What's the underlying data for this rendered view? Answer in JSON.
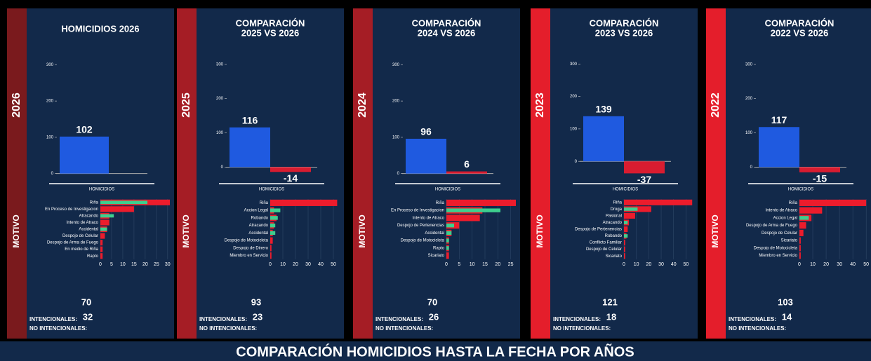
{
  "panels": [
    {
      "side_label": "2026",
      "side_color": "#7a1a1d",
      "title_lines": [
        "HOMICIDIOS 2026"
      ],
      "summary_chart": {
        "type": "bar",
        "categories": [
          "HOMICIDIOS"
        ],
        "series": [
          {
            "color": "#1f5ae0",
            "values": [
              102
            ]
          }
        ],
        "ylim": [
          -20,
          320
        ],
        "yticks": [
          0,
          100,
          200,
          300
        ]
      },
      "motivo_label": "MOTIVO",
      "motivo_chart": {
        "type": "bar",
        "orientation": "horizontal",
        "categories": [
          "Riña",
          "En Proceso de Investigacion",
          "Atracando",
          "Intento de Atraco",
          "Accidental",
          "Despojo de Celular",
          "Despojo de Arma de Fuego",
          "En medio de Riña",
          "Rapto"
        ],
        "series": [
          {
            "color": "#ec1c2c",
            "values": [
              31,
              15,
              4,
              4,
              3,
              2,
              1,
              1,
              1
            ]
          },
          {
            "color": "#3ecf8e",
            "values": [
              21,
              0,
              6,
              0,
              3,
              0,
              0,
              0,
              0
            ]
          }
        ],
        "xlim": [
          0,
          31
        ],
        "xticks": [
          0,
          5,
          10,
          15,
          20,
          25,
          30
        ]
      },
      "stats": {
        "total": 70,
        "intencionales_label": "INTENCIONALES:",
        "intencionales": 32,
        "no_intencionales_label": "NO INTENCIONALES:"
      }
    },
    {
      "side_label": "2025",
      "side_color": "#a51d25",
      "title_lines": [
        "COMPARACIÓN",
        "2025 VS 2026"
      ],
      "summary_chart": {
        "type": "bar",
        "categories": [
          "HOMICIDIOS"
        ],
        "series": [
          {
            "color": "#1f5ae0",
            "values": [
              116
            ]
          },
          {
            "color": "#d81c30",
            "values": [
              -14
            ]
          }
        ],
        "ylim": [
          -40,
          320
        ],
        "yticks": [
          0,
          100,
          200,
          300
        ]
      },
      "motivo_label": "MOTIVO",
      "motivo_chart": {
        "type": "bar",
        "orientation": "horizontal",
        "categories": [
          "Riña",
          "Accion Legal",
          "Robando",
          "Atracando",
          "Accidental",
          "Despojo de Motocicleta",
          "Despojo de Dinero",
          "Miembro en Servicio"
        ],
        "series": [
          {
            "color": "#ec1c2c",
            "values": [
              53,
              3,
              5,
              3,
              2,
              2,
              1,
              1
            ]
          },
          {
            "color": "#3ecf8e",
            "values": [
              0,
              8,
              6,
              4,
              4,
              0,
              0,
              0
            ]
          }
        ],
        "xlim": [
          0,
          55
        ],
        "xticks": [
          0,
          10,
          20,
          30,
          40,
          50
        ]
      },
      "stats": {
        "total": 93,
        "intencionales_label": "INTENCIONALES:",
        "intencionales": 23,
        "no_intencionales_label": "NO INTENCIONALES:"
      }
    },
    {
      "side_label": "2024",
      "side_color": "#a51d25",
      "title_lines": [
        "COMPARACIÓN",
        "2024 VS 2026"
      ],
      "summary_chart": {
        "type": "bar",
        "categories": [
          "HOMICIDIOS"
        ],
        "series": [
          {
            "color": "#1f5ae0",
            "values": [
              96
            ]
          },
          {
            "color": "#d81c30",
            "values": [
              6
            ]
          }
        ],
        "ylim": [
          -20,
          320
        ],
        "yticks": [
          0,
          100,
          200,
          300
        ]
      },
      "motivo_label": "MOTIVO",
      "motivo_chart": {
        "type": "bar",
        "orientation": "horizontal",
        "categories": [
          "Riña",
          "En Proceso de Investigacion",
          "Intento de Atraco",
          "Despojo de Pertenencias",
          "Accidental",
          "Despojo de Motocicleta",
          "Rapto",
          "Sicariato"
        ],
        "series": [
          {
            "color": "#ec1c2c",
            "values": [
              27,
              14,
              13,
              5,
              2,
              1,
              1,
              1
            ]
          },
          {
            "color": "#3ecf8e",
            "values": [
              0,
              21,
              0,
              3,
              2,
              1,
              1,
              0
            ]
          }
        ],
        "xlim": [
          0,
          27
        ],
        "xticks": [
          0,
          5,
          10,
          15,
          20,
          25
        ]
      },
      "stats": {
        "total": 70,
        "intencionales_label": "INTENCIONALES:",
        "intencionales": 26,
        "no_intencionales_label": "NO INTENCIONALES:"
      }
    },
    {
      "side_label": "2023",
      "side_color": "#e41e2b",
      "title_lines": [
        "COMPARACIÓN",
        "2023 VS 2026"
      ],
      "summary_chart": {
        "type": "bar",
        "categories": [
          "HOMICIDIOS"
        ],
        "series": [
          {
            "color": "#1f5ae0",
            "values": [
              139
            ]
          },
          {
            "color": "#d81c30",
            "values": [
              -37
            ]
          }
        ],
        "ylim": [
          -60,
          320
        ],
        "yticks": [
          0,
          100,
          200,
          300
        ]
      },
      "motivo_label": "MOTIVO",
      "motivo_chart": {
        "type": "bar",
        "orientation": "horizontal",
        "categories": [
          "Riña",
          "Droga",
          "Pasional",
          "Atracando",
          "Despojo de Pertenencias",
          "Robando",
          "Conflicto Familiar",
          "Despojo de Celular",
          "Sicariato"
        ],
        "series": [
          {
            "color": "#ec1c2c",
            "values": [
              55,
              22,
              9,
              4,
              3,
              2,
              1,
              1,
              1
            ]
          },
          {
            "color": "#3ecf8e",
            "values": [
              0,
              11,
              0,
              3,
              0,
              3,
              0,
              0,
              0
            ]
          }
        ],
        "xlim": [
          0,
          56
        ],
        "xticks": [
          0,
          10,
          20,
          30,
          40,
          50
        ]
      },
      "stats": {
        "total": 121,
        "intencionales_label": "INTENCIONALES:",
        "intencionales": 18,
        "no_intencionales_label": "NO INTENCIONALES:"
      }
    },
    {
      "side_label": "2022",
      "side_color": "#e41e2b",
      "title_lines": [
        "COMPARACIÓN",
        "2022 VS 2026"
      ],
      "summary_chart": {
        "type": "bar",
        "categories": [
          "HOMICIDIOS"
        ],
        "series": [
          {
            "color": "#1f5ae0",
            "values": [
              117
            ]
          },
          {
            "color": "#d81c30",
            "values": [
              -15
            ]
          }
        ],
        "ylim": [
          -40,
          320
        ],
        "yticks": [
          0,
          100,
          200,
          300
        ]
      },
      "motivo_label": "MOTIVO",
      "motivo_chart": {
        "type": "bar",
        "orientation": "horizontal",
        "categories": [
          "Riña",
          "Intento de Atraco",
          "Accion Legal",
          "Despojo de Arma de Fuego",
          "Despojo de Celular",
          "Sicariato",
          "Despojo de Motocicleta",
          "Miembro en Servicio"
        ],
        "series": [
          {
            "color": "#ec1c2c",
            "values": [
              50,
              17,
              9,
              5,
              3,
              1,
              1,
              1
            ]
          },
          {
            "color": "#3ecf8e",
            "values": [
              0,
              0,
              7,
              0,
              0,
              0,
              0,
              0
            ]
          }
        ],
        "xlim": [
          0,
          52
        ],
        "xticks": [
          0,
          10,
          20,
          30,
          40,
          50
        ]
      },
      "stats": {
        "total": 103,
        "intencionales_label": "INTENCIONALES:",
        "intencionales": 14,
        "no_intencionales_label": "NO INTENCIONALES:"
      }
    }
  ],
  "footer": {
    "title": "COMPARACIÓN HOMICIDIOS HASTA LA FECHA POR AÑOS"
  }
}
